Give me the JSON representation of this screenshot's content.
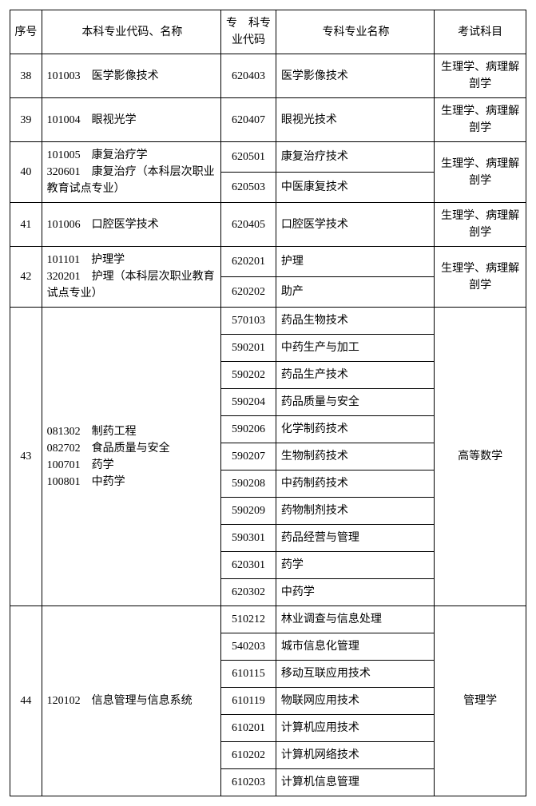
{
  "headers": {
    "seq": "序号",
    "bk": "本科专业代码、名称",
    "zkc": "专　科专业代码",
    "zkn": "专科专业名称",
    "sub": "考试科目"
  },
  "rows": [
    {
      "seq": "38",
      "bk": [
        [
          "101003",
          "医学影像技术"
        ]
      ],
      "zk": [
        [
          "620403",
          "医学影像技术"
        ]
      ],
      "sub": "生理学、病理解剖学"
    },
    {
      "seq": "39",
      "bk": [
        [
          "101004",
          "眼视光学"
        ]
      ],
      "zk": [
        [
          "620407",
          "眼视光技术"
        ]
      ],
      "sub": "生理学、病理解剖学"
    },
    {
      "seq": "40",
      "bk": [
        [
          "101005",
          "康复治疗学"
        ],
        [
          "320601",
          "康复治疗（本科层次职业教育试点专业）"
        ]
      ],
      "bk_wrap": true,
      "zk": [
        [
          "620501",
          "康复治疗技术"
        ],
        [
          "620503",
          "中医康复技术"
        ]
      ],
      "sub": "生理学、病理解剖学"
    },
    {
      "seq": "41",
      "bk": [
        [
          "101006",
          "口腔医学技术"
        ]
      ],
      "zk": [
        [
          "620405",
          "口腔医学技术"
        ]
      ],
      "sub": "生理学、病理解剖学"
    },
    {
      "seq": "42",
      "bk": [
        [
          "101101",
          "护理学"
        ],
        [
          "320201",
          "护理（本科层次职业教育试点专业）"
        ]
      ],
      "bk_wrap": true,
      "zk": [
        [
          "620201",
          "护理"
        ],
        [
          "620202",
          "助产"
        ]
      ],
      "sub": "生理学、病理解剖学"
    },
    {
      "seq": "43",
      "bk": [
        [
          "081302",
          "制药工程"
        ],
        [
          "082702",
          "食品质量与安全"
        ],
        [
          "100701",
          "药学"
        ],
        [
          "100801",
          "中药学"
        ]
      ],
      "zk": [
        [
          "570103",
          "药品生物技术"
        ],
        [
          "590201",
          "中药生产与加工"
        ],
        [
          "590202",
          "药品生产技术"
        ],
        [
          "590204",
          "药品质量与安全"
        ],
        [
          "590206",
          "化学制药技术"
        ],
        [
          "590207",
          "生物制药技术"
        ],
        [
          "590208",
          "中药制药技术"
        ],
        [
          "590209",
          "药物制剂技术"
        ],
        [
          "590301",
          "药品经营与管理"
        ],
        [
          "620301",
          "药学"
        ],
        [
          "620302",
          "中药学"
        ]
      ],
      "sub": "高等数学"
    },
    {
      "seq": "44",
      "bk": [
        [
          "120102",
          "信息管理与信息系统"
        ]
      ],
      "zk": [
        [
          "510212",
          "林业调查与信息处理"
        ],
        [
          "540203",
          "城市信息化管理"
        ],
        [
          "610115",
          "移动互联应用技术"
        ],
        [
          "610119",
          "物联网应用技术"
        ],
        [
          "610201",
          "计算机应用技术"
        ],
        [
          "610202",
          "计算机网络技术"
        ],
        [
          "610203",
          "计算机信息管理"
        ]
      ],
      "sub": "管理学"
    }
  ]
}
